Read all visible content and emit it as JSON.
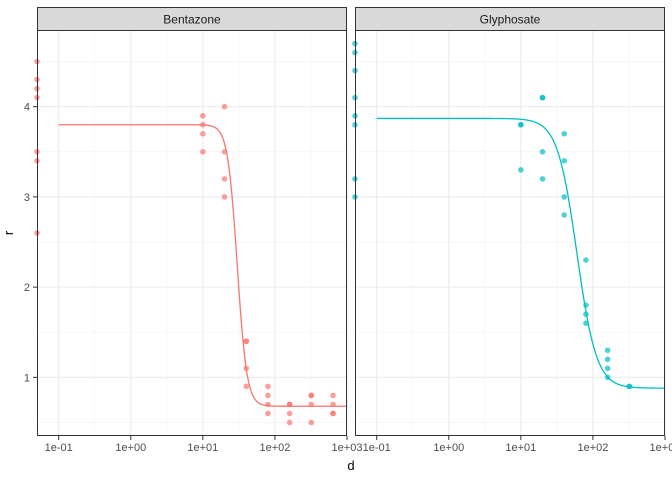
{
  "chart_data": {
    "type": "scatter",
    "xlabel": "d",
    "ylabel": "r",
    "x_scale": "log10",
    "xlim": [
      0.05,
      1000
    ],
    "ylim": [
      0.35,
      4.85
    ],
    "x_ticks": [
      0.1,
      1,
      10,
      100,
      1000
    ],
    "x_tick_labels": [
      "1e-01",
      "1e+00",
      "1e+01",
      "1e+02",
      "1e+03"
    ],
    "y_ticks": [
      1,
      2,
      3,
      4
    ],
    "y_tick_labels": [
      "1",
      "2",
      "3",
      "4"
    ],
    "grid": true,
    "legend": "none",
    "panels": [
      {
        "name": "Bentazone",
        "color": "#F8766D",
        "points": [
          {
            "x": 0.05,
            "y": 4.5
          },
          {
            "x": 0.05,
            "y": 4.3
          },
          {
            "x": 0.05,
            "y": 4.2
          },
          {
            "x": 0.05,
            "y": 4.1
          },
          {
            "x": 0.05,
            "y": 3.5
          },
          {
            "x": 0.05,
            "y": 3.4
          },
          {
            "x": 0.05,
            "y": 2.6
          },
          {
            "x": 10,
            "y": 3.9
          },
          {
            "x": 10,
            "y": 3.8
          },
          {
            "x": 10,
            "y": 3.7
          },
          {
            "x": 10,
            "y": 3.5
          },
          {
            "x": 20,
            "y": 4.0
          },
          {
            "x": 20,
            "y": 3.5
          },
          {
            "x": 20,
            "y": 3.2
          },
          {
            "x": 20,
            "y": 3.0
          },
          {
            "x": 40,
            "y": 1.4
          },
          {
            "x": 40,
            "y": 1.4
          },
          {
            "x": 40,
            "y": 1.1
          },
          {
            "x": 40,
            "y": 0.9
          },
          {
            "x": 80,
            "y": 0.9
          },
          {
            "x": 80,
            "y": 0.8
          },
          {
            "x": 80,
            "y": 0.7
          },
          {
            "x": 80,
            "y": 0.6
          },
          {
            "x": 160,
            "y": 0.7
          },
          {
            "x": 160,
            "y": 0.7
          },
          {
            "x": 160,
            "y": 0.6
          },
          {
            "x": 160,
            "y": 0.5
          },
          {
            "x": 320,
            "y": 0.8
          },
          {
            "x": 320,
            "y": 0.8
          },
          {
            "x": 320,
            "y": 0.7
          },
          {
            "x": 320,
            "y": 0.5
          },
          {
            "x": 640,
            "y": 0.8
          },
          {
            "x": 640,
            "y": 0.7
          },
          {
            "x": 640,
            "y": 0.6
          },
          {
            "x": 640,
            "y": 0.6
          }
        ],
        "fit": {
          "lower": 0.68,
          "upper": 3.8,
          "ed50": 30,
          "slope": 6.5
        }
      },
      {
        "name": "Glyphosate",
        "color": "#00BFC4",
        "points": [
          {
            "x": 0.05,
            "y": 4.7
          },
          {
            "x": 0.05,
            "y": 4.6
          },
          {
            "x": 0.05,
            "y": 4.4
          },
          {
            "x": 0.05,
            "y": 4.1
          },
          {
            "x": 0.05,
            "y": 3.9
          },
          {
            "x": 0.05,
            "y": 3.8
          },
          {
            "x": 0.05,
            "y": 3.2
          },
          {
            "x": 0.05,
            "y": 3.0
          },
          {
            "x": 10,
            "y": 3.8
          },
          {
            "x": 10,
            "y": 3.8
          },
          {
            "x": 10,
            "y": 3.3
          },
          {
            "x": 20,
            "y": 4.1
          },
          {
            "x": 20,
            "y": 4.1
          },
          {
            "x": 20,
            "y": 3.5
          },
          {
            "x": 20,
            "y": 3.2
          },
          {
            "x": 40,
            "y": 3.7
          },
          {
            "x": 40,
            "y": 3.4
          },
          {
            "x": 40,
            "y": 3.0
          },
          {
            "x": 40,
            "y": 2.8
          },
          {
            "x": 80,
            "y": 2.3
          },
          {
            "x": 80,
            "y": 1.8
          },
          {
            "x": 80,
            "y": 1.7
          },
          {
            "x": 80,
            "y": 1.6
          },
          {
            "x": 160,
            "y": 1.3
          },
          {
            "x": 160,
            "y": 1.2
          },
          {
            "x": 160,
            "y": 1.1
          },
          {
            "x": 160,
            "y": 1.0
          },
          {
            "x": 320,
            "y": 0.9
          },
          {
            "x": 320,
            "y": 0.9
          }
        ],
        "fit": {
          "lower": 0.88,
          "upper": 3.87,
          "ed50": 60,
          "slope": 3.2
        }
      }
    ]
  }
}
